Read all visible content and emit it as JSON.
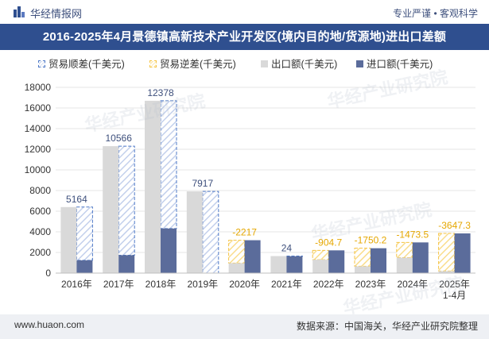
{
  "header": {
    "brand": "华经情报网",
    "tagline": "专业严谨 • 客观科学",
    "title": "2016-2025年4月景德镇高新技术产业开发区(境内目的地/货源地)进出口差额"
  },
  "legend": {
    "surplus": "贸易顺差(千美元)",
    "deficit": "贸易逆差(千美元)",
    "export": "出口额(千美元)",
    "import": "进口额(千美元)"
  },
  "colors": {
    "export": "#d9d9d9",
    "import": "#5b6c9b",
    "surplus": "#4e79c7",
    "deficit": "#f5c342",
    "title_bg": "#2f4f8f",
    "label_surplus": "#3d4f7c",
    "label_deficit": "#e5a700"
  },
  "watermarks": [
    "华经产业研究院",
    "华经产业研究院",
    "华经产业研究院",
    "华经产业研究院"
  ],
  "footer": {
    "left": "www.huaon.com",
    "right": "数据来源：中国海关，华经产业研究院整理"
  },
  "chart_data": {
    "type": "bar",
    "categories": [
      "2016年",
      "2017年",
      "2018年",
      "2019年",
      "2020年",
      "2021年",
      "2022年",
      "2023年",
      "2024年",
      "2025年\n1-4月"
    ],
    "ylim": [
      0,
      18000
    ],
    "yticks": [
      0,
      2000,
      4000,
      6000,
      8000,
      10000,
      12000,
      14000,
      16000,
      18000
    ],
    "series": [
      {
        "name": "出口额(千美元)",
        "key": "export",
        "values": [
          6400,
          12300,
          16700,
          7917,
          970,
          1650,
          1300,
          660,
          1500,
          200
        ]
      },
      {
        "name": "进口额(千美元)",
        "key": "import",
        "values": [
          1236,
          1734,
          4322,
          0,
          3187,
          1626,
          2205,
          2410,
          2974,
          3847
        ]
      }
    ],
    "balance": {
      "labels": [
        "5164",
        "10566",
        "12378",
        "7917",
        "-2217",
        "24",
        "-904.7",
        "-1750.2",
        "-1473.5",
        "-3647.3"
      ],
      "values": [
        5164,
        10566,
        12378,
        7917,
        -2217,
        24,
        -904.7,
        -1750.2,
        -1473.5,
        -3647.3
      ]
    }
  }
}
